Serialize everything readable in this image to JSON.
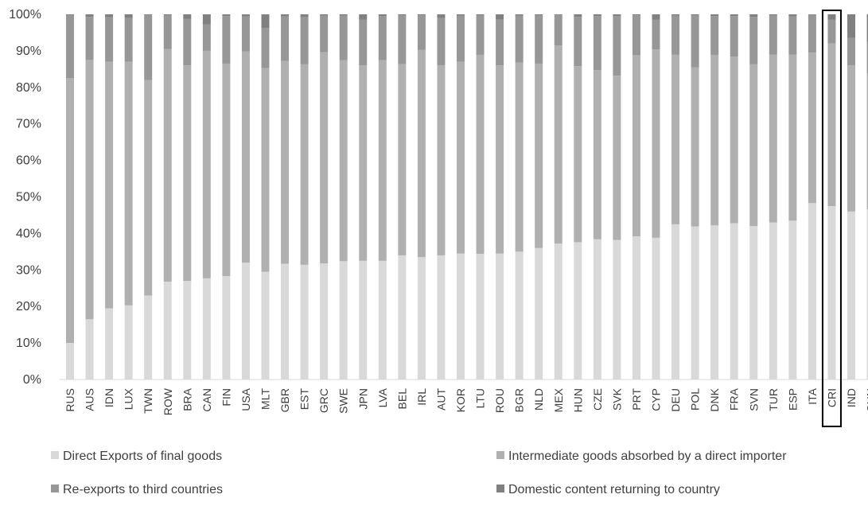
{
  "chart_data": {
    "type": "bar",
    "stacked": true,
    "percent": true,
    "categories": [
      "RUS",
      "AUS",
      "IDN",
      "LUX",
      "TWN",
      "ROW",
      "BRA",
      "CAN",
      "FIN",
      "USA",
      "MLT",
      "GBR",
      "EST",
      "GRC",
      "SWE",
      "JPN",
      "LVA",
      "BEL",
      "IRL",
      "AUT",
      "KOR",
      "LTU",
      "ROU",
      "BGR",
      "NLD",
      "MEX",
      "HUN",
      "CZE",
      "SVK",
      "PRT",
      "CYP",
      "DEU",
      "POL",
      "DNK",
      "FRA",
      "SVN",
      "TUR",
      "ESP",
      "ITA",
      "CRI",
      "IND",
      "CHN"
    ],
    "series": [
      {
        "name": "Direct Exports of final goods",
        "color": "#d9d9d9",
        "values": [
          10,
          16.5,
          19.5,
          20.3,
          23,
          26.8,
          27,
          27.7,
          28.3,
          32,
          29.5,
          31.7,
          31.4,
          31.8,
          32.4,
          32.5,
          32.5,
          34,
          33.5,
          34,
          34.5,
          34.4,
          34.5,
          35,
          36,
          37.2,
          37.6,
          38.4,
          38.2,
          39.2,
          38.8,
          42.5,
          41.9,
          42.2,
          42.8,
          42,
          43,
          43.5,
          48.3,
          47.5,
          46,
          46.6
        ]
      },
      {
        "name": "Intermediate goods absorbed by a direct importer",
        "color": "#b0b0b0",
        "values": [
          72.5,
          71,
          67.5,
          66.7,
          59,
          63.7,
          59,
          62.3,
          58.2,
          57.8,
          55.8,
          55.5,
          54.9,
          57.8,
          55,
          53.5,
          54.9,
          52.4,
          56.8,
          52,
          52.5,
          54.5,
          51.5,
          51.8,
          50.5,
          54.3,
          48.2,
          46.3,
          45,
          49.6,
          51.6,
          46.5,
          43.6,
          46.7,
          45.6,
          44.3,
          46,
          45.5,
          41.2,
          44.5,
          40,
          37.2
        ]
      },
      {
        "name": "Re-exports to third countries",
        "color": "#979797",
        "values": [
          17.3,
          11.8,
          12.2,
          12,
          17.8,
          9.2,
          12.8,
          7.2,
          13,
          9.6,
          11,
          12.2,
          12.9,
          10,
          12.2,
          12.5,
          12.1,
          13.3,
          9.4,
          13,
          12.6,
          10.8,
          12.6,
          12.8,
          13.2,
          8.3,
          13.5,
          14.8,
          16.3,
          10.9,
          8.1,
          10.6,
          14.2,
          10.6,
          11.1,
          13,
          10.7,
          10.4,
          10.4,
          6.5,
          7.5,
          8.7
        ]
      },
      {
        "name": "Domestic content returning to country",
        "color": "#808080",
        "values": [
          0.2,
          0.7,
          0.8,
          1,
          0.2,
          0.3,
          1.2,
          2.8,
          0.5,
          0.6,
          3.7,
          0.6,
          0.8,
          0.4,
          0.4,
          1.5,
          0.5,
          0.3,
          0.3,
          1,
          0.4,
          0.3,
          1.4,
          0.4,
          0.3,
          0.2,
          0.7,
          0.5,
          0.5,
          0.3,
          1.5,
          0.4,
          0.3,
          0.5,
          0.5,
          0.7,
          0.3,
          0.6,
          0.1,
          1.5,
          6.5,
          7.5
        ]
      }
    ],
    "ylim": [
      0,
      100
    ],
    "yticks": [
      "0%",
      "10%",
      "20%",
      "30%",
      "40%",
      "50%",
      "60%",
      "70%",
      "80%",
      "90%",
      "100%"
    ],
    "grid": false,
    "legend_position": "bottom",
    "highlighted_category": "CRI"
  }
}
